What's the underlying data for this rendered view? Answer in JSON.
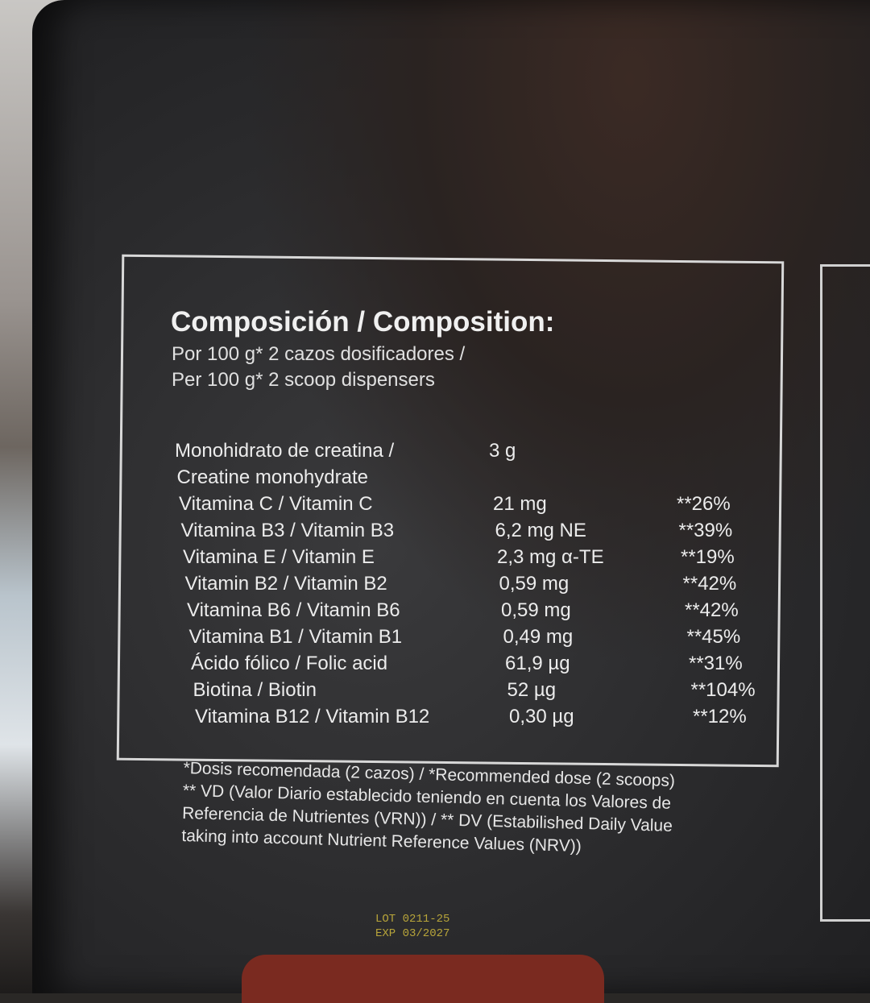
{
  "label": {
    "title": "Composición / Composition:",
    "subtitle_es": "Por 100 g* 2 cazos dosificadores /",
    "subtitle_en": "Per 100 g* 2 scoop dispensers",
    "rows": [
      {
        "name": "Monohidrato de creatina /",
        "value": "3 g",
        "dv": ""
      },
      {
        "name": "Creatine monohydrate",
        "value": "",
        "dv": ""
      },
      {
        "name": "Vitamina C / Vitamin C",
        "value": "21 mg",
        "dv": "**26%"
      },
      {
        "name": "Vitamina B3 / Vitamin B3",
        "value": "6,2 mg NE",
        "dv": "**39%"
      },
      {
        "name": "Vitamina E / Vitamin E",
        "value": "2,3 mg α-TE",
        "dv": "**19%"
      },
      {
        "name": "Vitamin B2 / Vitamin B2",
        "value": "0,59 mg",
        "dv": "**42%"
      },
      {
        "name": "Vitamina B6 / Vitamin B6",
        "value": "0,59 mg",
        "dv": "**42%"
      },
      {
        "name": "Vitamina B1 / Vitamin B1",
        "value": "0,49 mg",
        "dv": "**45%"
      },
      {
        "name": "Ácido fólico / Folic acid",
        "value": "61,9 µg",
        "dv": "**31%"
      },
      {
        "name": "Biotina / Biotin",
        "value": "52 µg",
        "dv": "**104%"
      },
      {
        "name": "Vitamina B12 / Vitamin B12",
        "value": "0,30 µg",
        "dv": "**12%"
      }
    ],
    "footnotes": [
      "*Dosis recomendada (2 cazos) /  *Recommended dose (2 scoops)",
      "** VD (Valor Diario establecido teniendo en cuenta los Valores de",
      "Referencia de Nutrientes (VRN)) / ** DV (Estabilished Daily Value",
      "taking into account Nutrient Reference Values (NRV))"
    ],
    "lot": "LOT 0211-25",
    "exp": "EXP 03/2027"
  }
}
